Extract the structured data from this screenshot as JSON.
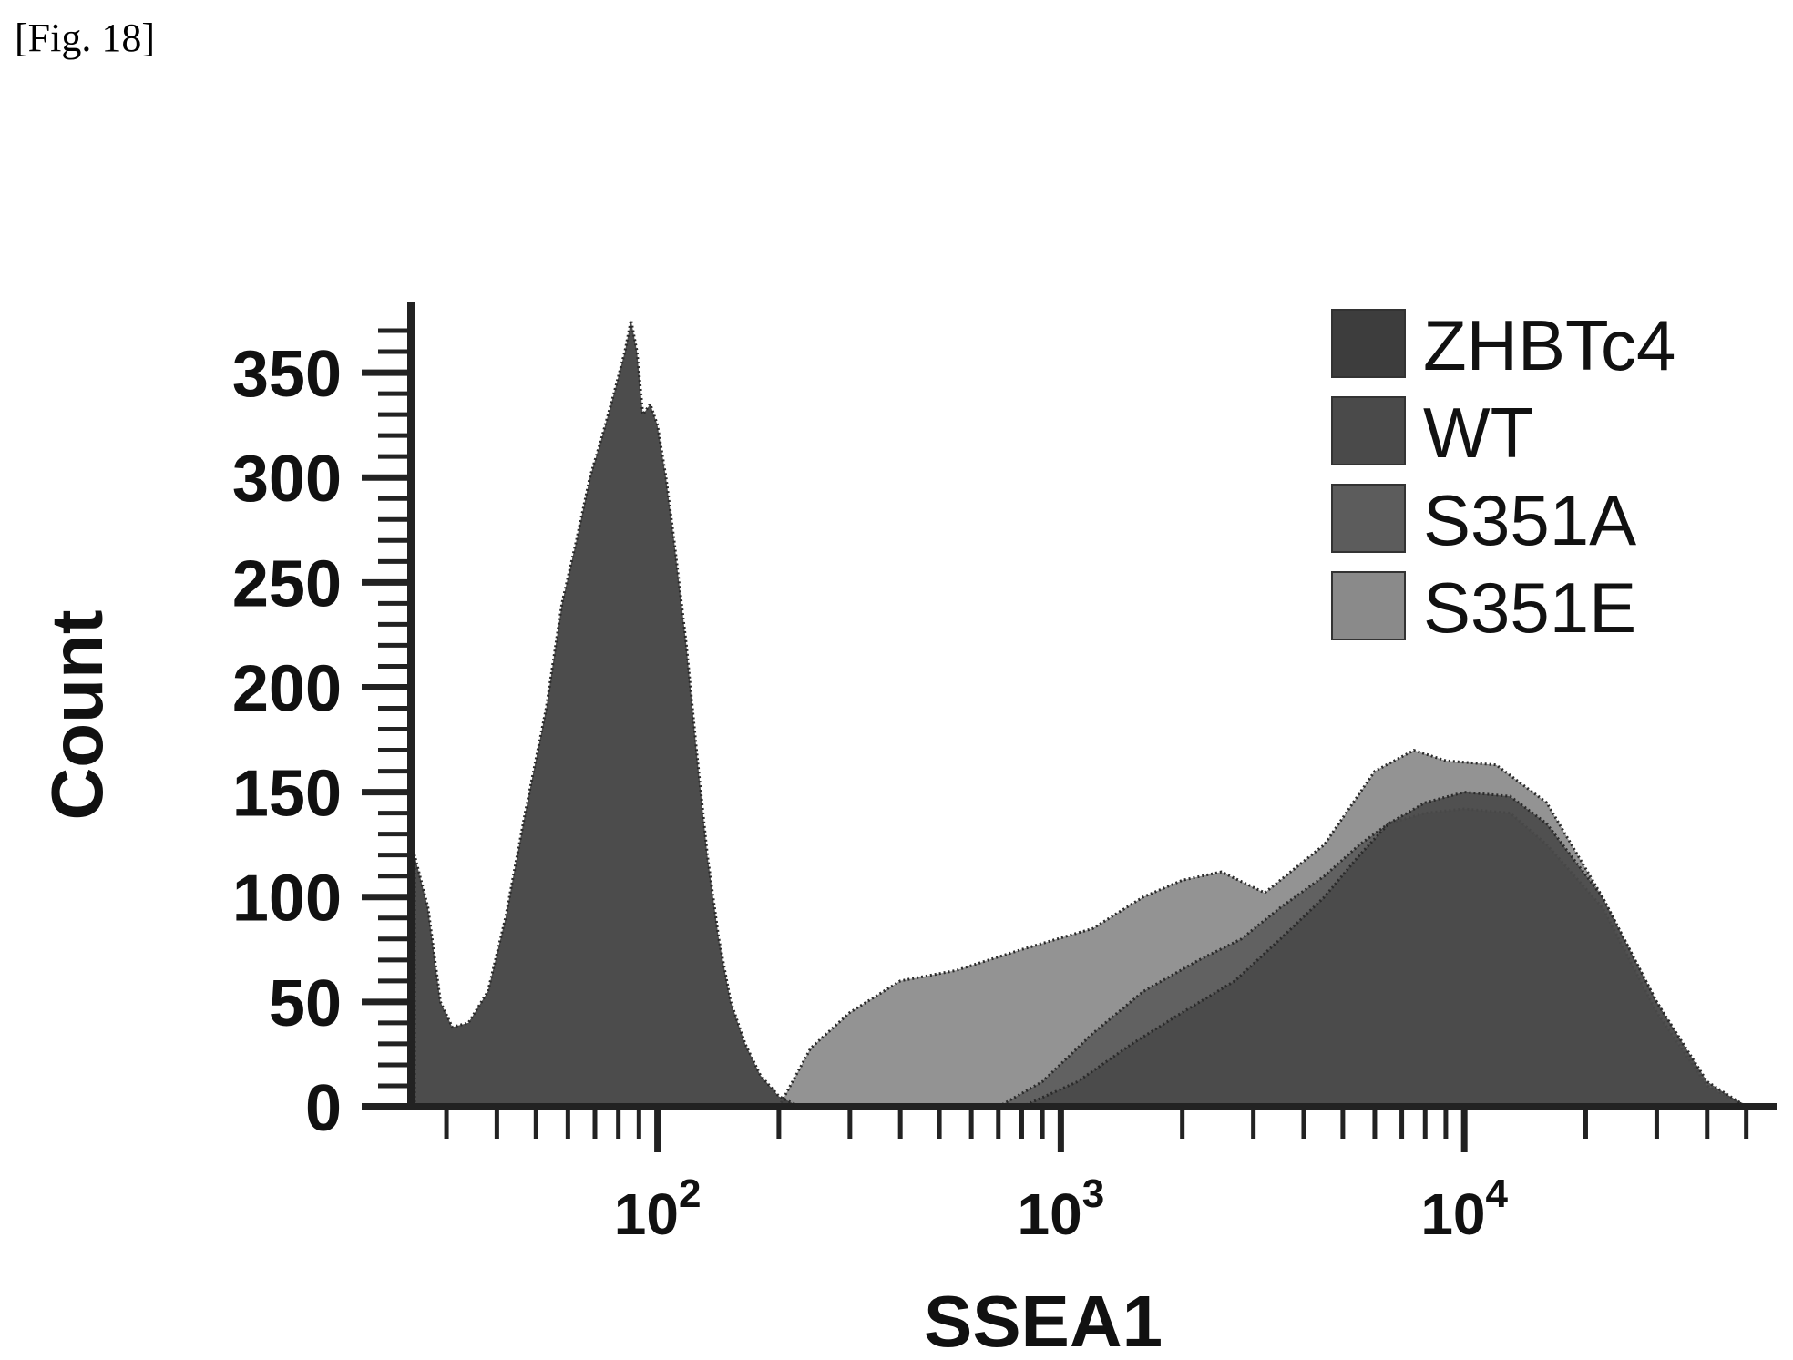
{
  "figure_label": "[Fig. 18]",
  "chart_data": {
    "type": "area",
    "title": "",
    "xlabel": "SSEA1",
    "ylabel": "Count",
    "x_scale": "log",
    "xlim": [
      25,
      55000
    ],
    "ylim": [
      0,
      380
    ],
    "y_ticks": [
      0,
      50,
      100,
      150,
      200,
      250,
      300,
      350
    ],
    "x_major_ticks": [
      100,
      1000,
      10000
    ],
    "x_tick_labels": [
      {
        "base": "10",
        "exp": "2"
      },
      {
        "base": "10",
        "exp": "3"
      },
      {
        "base": "10",
        "exp": "4"
      }
    ],
    "legend_position": "top-right",
    "series": [
      {
        "name": "S351E",
        "color": "#8a8a8a",
        "x": [
          200,
          240,
          300,
          400,
          550,
          800,
          1200,
          1600,
          2000,
          2500,
          3200,
          4500,
          6000,
          7500,
          9000,
          12000,
          16000,
          22000,
          30000,
          40000,
          50000
        ],
        "y": [
          0,
          28,
          45,
          60,
          65,
          75,
          85,
          100,
          108,
          112,
          102,
          125,
          160,
          170,
          165,
          163,
          145,
          100,
          50,
          10,
          0
        ]
      },
      {
        "name": "S351A",
        "color": "#5c5c5c",
        "x": [
          700,
          900,
          1200,
          1600,
          2200,
          2800,
          3500,
          4500,
          5500,
          6500,
          8000,
          10000,
          13000,
          16000,
          22000,
          30000,
          40000,
          50000
        ],
        "y": [
          0,
          12,
          35,
          55,
          70,
          80,
          95,
          110,
          125,
          135,
          140,
          142,
          140,
          125,
          95,
          45,
          10,
          0
        ]
      },
      {
        "name": "WT",
        "color": "#4a4a4a",
        "x": [
          800,
          1100,
          1500,
          2000,
          2700,
          3500,
          4500,
          5500,
          6500,
          8000,
          10000,
          13000,
          16000,
          22000,
          30000,
          40000,
          50000
        ],
        "y": [
          0,
          12,
          30,
          45,
          60,
          80,
          100,
          120,
          135,
          145,
          150,
          148,
          135,
          100,
          50,
          12,
          0
        ]
      },
      {
        "name": "ZHBTc4",
        "color": "#3d3d3d",
        "x": [
          25,
          27,
          29,
          31,
          34,
          38,
          42,
          47,
          53,
          58,
          63,
          68,
          73,
          78,
          83,
          86,
          89,
          92,
          96,
          100,
          105,
          110,
          118,
          125,
          133,
          142,
          152,
          165,
          180,
          200,
          220,
          240
        ],
        "y": [
          120,
          95,
          50,
          38,
          40,
          55,
          90,
          140,
          190,
          240,
          270,
          300,
          320,
          340,
          360,
          375,
          360,
          330,
          335,
          325,
          300,
          270,
          220,
          170,
          120,
          80,
          50,
          30,
          15,
          5,
          1,
          0
        ]
      }
    ]
  }
}
